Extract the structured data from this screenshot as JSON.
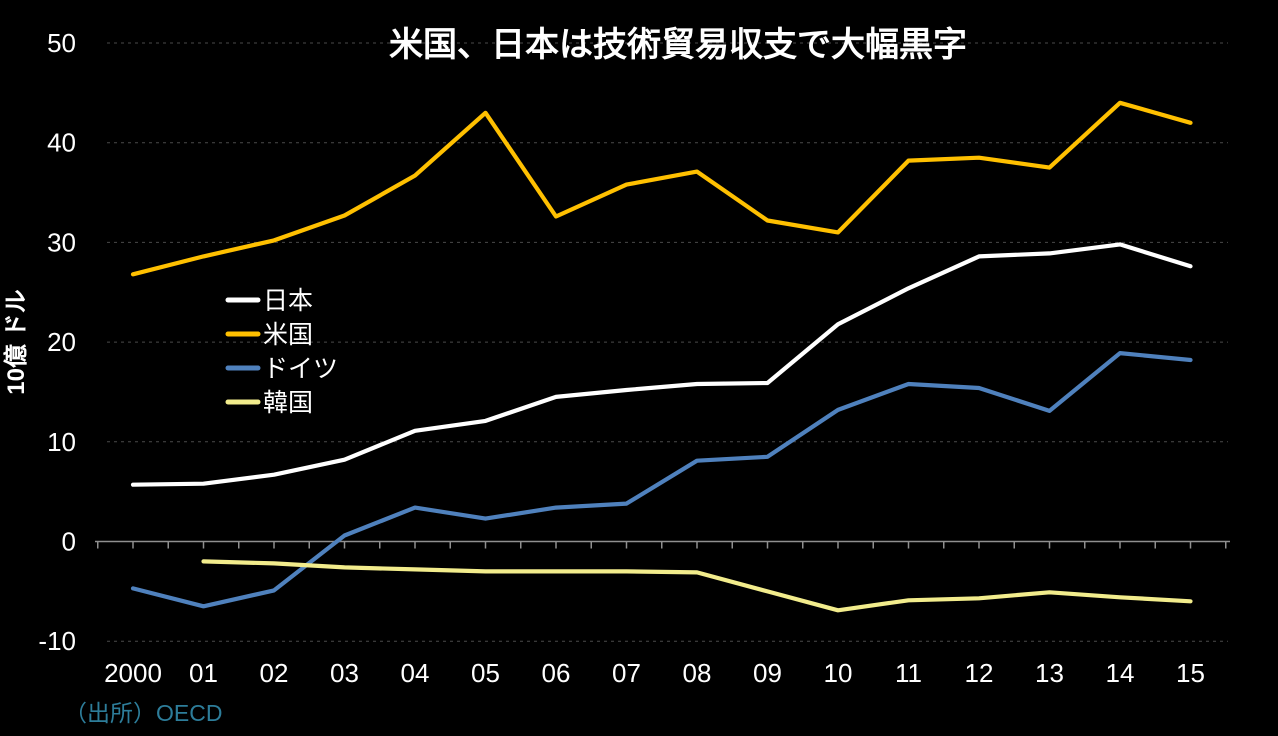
{
  "source": "（出所）OECD",
  "chart_data": {
    "type": "line",
    "title": "米国、日本は技術貿易収支で大幅黒字",
    "xlabel": "",
    "ylabel": "10億 ドル",
    "ylim": [
      -10,
      50
    ],
    "yticks": [
      50,
      40,
      30,
      20,
      10,
      0,
      -10
    ],
    "grid": "horizontal-dashed",
    "legend_position": "inside-left",
    "background_color": "#000000",
    "axis_color": "#8f8f8f",
    "gridline_color": "#4a4a4a",
    "categories": [
      "2000",
      "01",
      "02",
      "03",
      "04",
      "05",
      "06",
      "07",
      "08",
      "09",
      "10",
      "11",
      "12",
      "13",
      "14",
      "15"
    ],
    "series": [
      {
        "name": "日本",
        "color": "#ffffff",
        "values": [
          5.7,
          5.8,
          6.7,
          8.2,
          11.1,
          12.1,
          14.5,
          15.2,
          15.8,
          15.9,
          21.8,
          25.4,
          28.6,
          28.9,
          29.8,
          27.6
        ]
      },
      {
        "name": "米国",
        "color": "#ffc000",
        "values": [
          26.8,
          28.6,
          30.2,
          32.7,
          36.7,
          43.0,
          32.6,
          35.8,
          37.1,
          32.2,
          31.0,
          38.2,
          38.5,
          37.5,
          44.0,
          42.0
        ]
      },
      {
        "name": "ドイツ",
        "color": "#4f81bd",
        "values": [
          -4.7,
          -6.5,
          -4.9,
          0.6,
          3.4,
          2.3,
          3.4,
          3.8,
          8.1,
          8.5,
          13.2,
          15.8,
          15.4,
          13.1,
          18.9,
          18.2
        ]
      },
      {
        "name": "韓国",
        "color": "#f2ec8c",
        "values": [
          null,
          -2.0,
          -2.2,
          -2.6,
          -2.8,
          -3.0,
          -3.0,
          -3.0,
          -3.1,
          -5.0,
          -6.9,
          -5.9,
          -5.7,
          -5.1,
          -5.6,
          -6.0
        ]
      }
    ]
  }
}
